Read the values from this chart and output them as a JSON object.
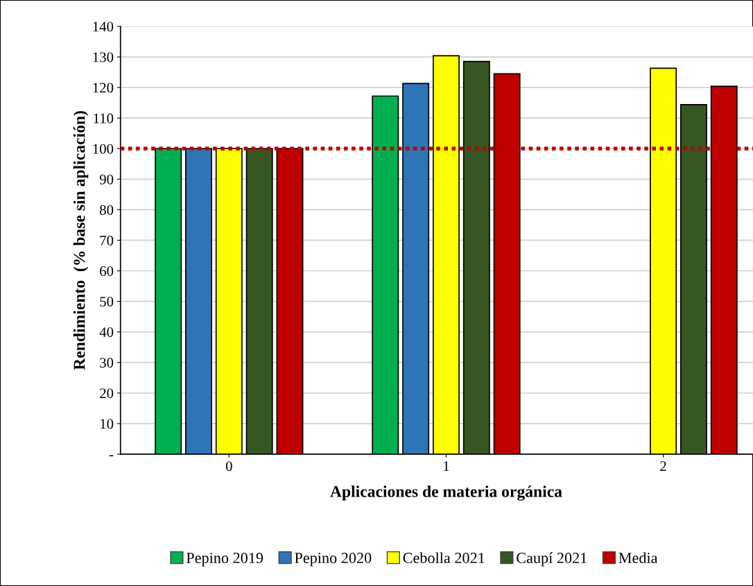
{
  "chart_data": {
    "type": "bar",
    "xlabel": "Aplicaciones de materia orgánica",
    "ylabel": "Rendimiento  (% base sin aplicación)",
    "categories": [
      "0",
      "1",
      "2"
    ],
    "series": [
      {
        "name": "Pepino 2019",
        "color": "#00b050",
        "values": [
          100,
          117.2,
          null
        ]
      },
      {
        "name": "Pepino 2020",
        "color": "#2e75b6",
        "values": [
          100,
          121.3,
          null
        ]
      },
      {
        "name": "Cebolla 2021",
        "color": "#ffff00",
        "values": [
          100,
          130.4,
          126.3
        ]
      },
      {
        "name": "Caupí 2021",
        "color": "#375623",
        "values": [
          100,
          128.5,
          114.4
        ]
      },
      {
        "name": "Media",
        "color": "#c00000",
        "values": [
          100,
          124.5,
          120.4
        ]
      }
    ],
    "ylim": [
      0,
      140
    ],
    "yticks": [
      {
        "value": 0,
        "label": "-"
      },
      10,
      20,
      30,
      40,
      50,
      60,
      70,
      80,
      90,
      100,
      110,
      120,
      130,
      140
    ],
    "ref_lines": [
      {
        "axis": "y",
        "value": 100,
        "color": "#c00000",
        "line_style": "dotted"
      }
    ],
    "grid": "y",
    "legend": "bottom"
  }
}
